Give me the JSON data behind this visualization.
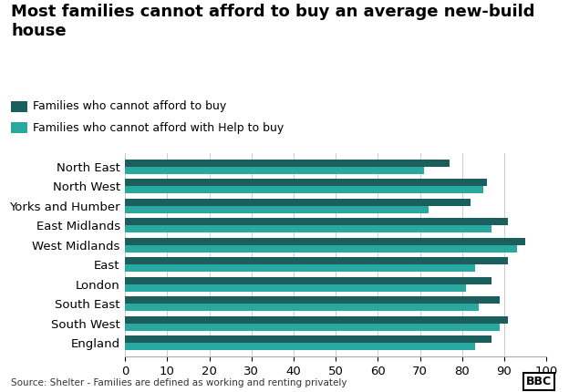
{
  "title": "Most families cannot afford to buy an average new-build\nhouse",
  "categories": [
    "North East",
    "North West",
    "Yorks and Humber",
    "East Midlands",
    "West Midlands",
    "East",
    "London",
    "South East",
    "South West",
    "England"
  ],
  "cannot_afford": [
    77,
    86,
    82,
    91,
    95,
    91,
    87,
    89,
    91,
    87
  ],
  "cannot_afford_htb": [
    71,
    85,
    72,
    87,
    93,
    83,
    81,
    84,
    89,
    83
  ],
  "color_dark": "#1a5f5e",
  "color_teal": "#29a8a0",
  "legend_label1": "Families who cannot afford to buy",
  "legend_label2": "Families who cannot afford with Help to buy",
  "xlim": [
    0,
    100
  ],
  "xticks": [
    0,
    10,
    20,
    30,
    40,
    50,
    60,
    70,
    80,
    90,
    100
  ],
  "source": "Source: Shelter - Families are defined as working and renting privately",
  "background_color": "#ffffff",
  "bar_height": 0.38,
  "title_fontsize": 13,
  "tick_fontsize": 9.5,
  "legend_fontsize": 9
}
